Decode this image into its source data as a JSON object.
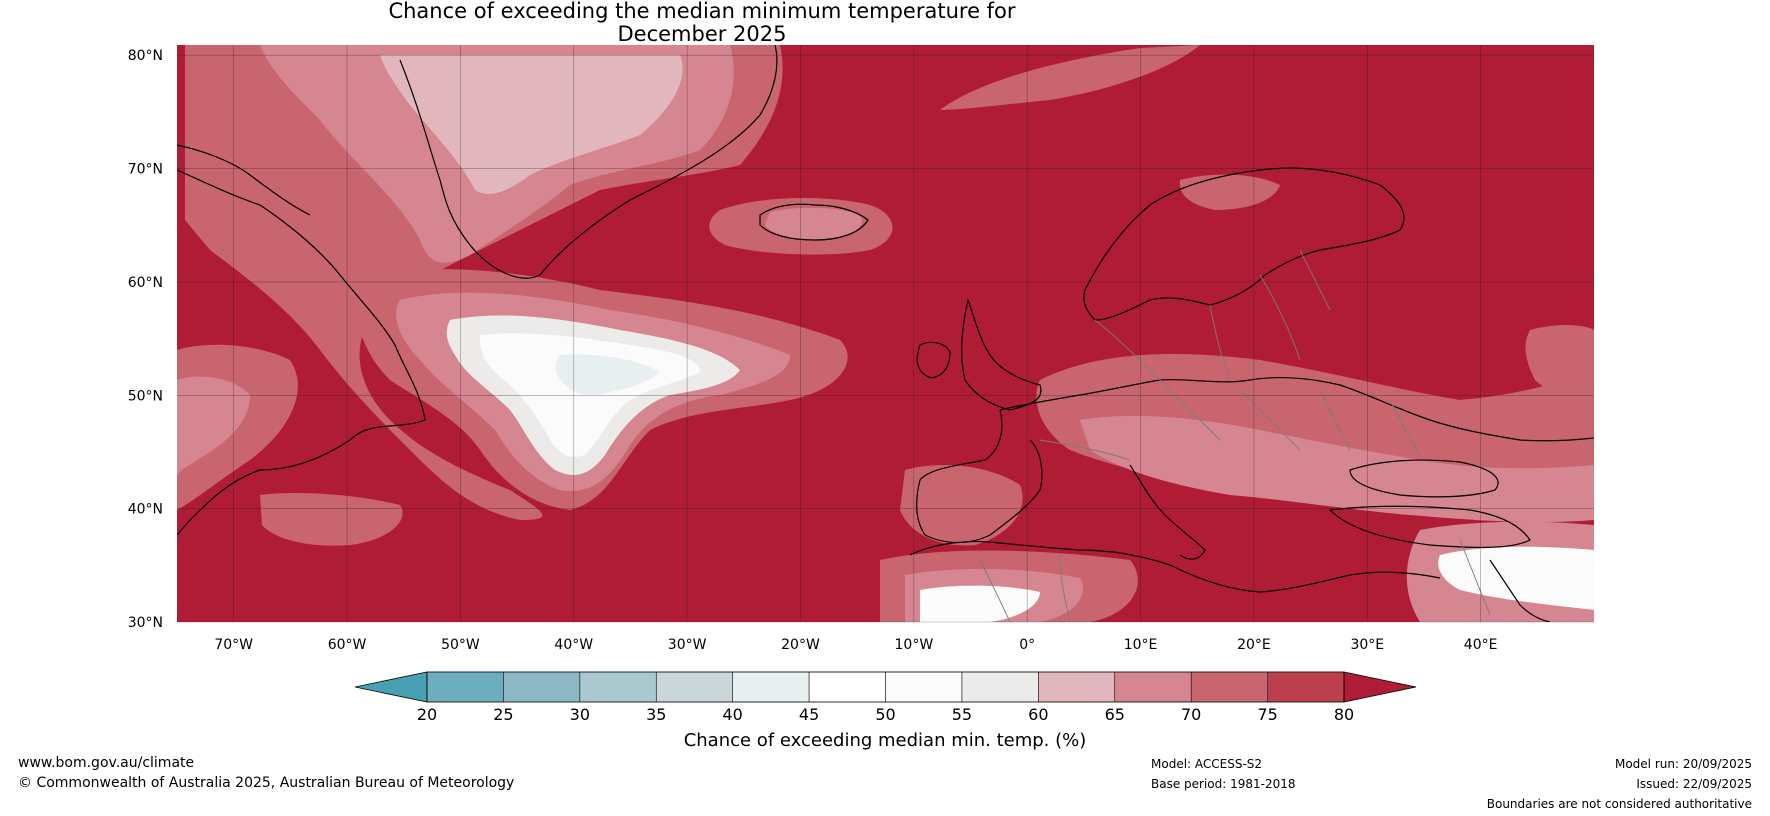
{
  "title_line1": "Chance of exceeding the median minimum temperature for",
  "title_line2": "December 2025",
  "lat_labels": [
    "80°N",
    "70°N",
    "60°N",
    "50°N",
    "40°N",
    "30°N"
  ],
  "lon_labels": [
    "70°W",
    "60°W",
    "50°W",
    "40°W",
    "30°W",
    "20°W",
    "10°W",
    "0°",
    "10°E",
    "20°E",
    "30°E",
    "40°E"
  ],
  "colorbar": {
    "ticks": [
      "20",
      "25",
      "30",
      "35",
      "40",
      "45",
      "50",
      "55",
      "60",
      "65",
      "70",
      "75",
      "80"
    ],
    "colors": [
      "#47a1b3",
      "#6caebf",
      "#8db9c6",
      "#a9c8cf",
      "#cbd6da",
      "#e8eff0",
      "#ffffff",
      "#fbfbfb",
      "#ecebea",
      "#e1b7bd",
      "#d68690",
      "#c9656f",
      "#bd3f4d",
      "#b01c35"
    ],
    "label": "Chance of exceeding median min. temp. (%)"
  },
  "footer": {
    "website": "www.bom.gov.au/climate",
    "copyright": "© Commonwealth of Australia 2025, Australian Bureau of Meteorology",
    "model": "Model: ACCESS-S2",
    "base_period": "Base period: 1981-2018",
    "model_run": "Model run: 20/09/2025",
    "issued": "Issued: 22/09/2025",
    "disclaimer": "Boundaries are not considered authoritative"
  }
}
